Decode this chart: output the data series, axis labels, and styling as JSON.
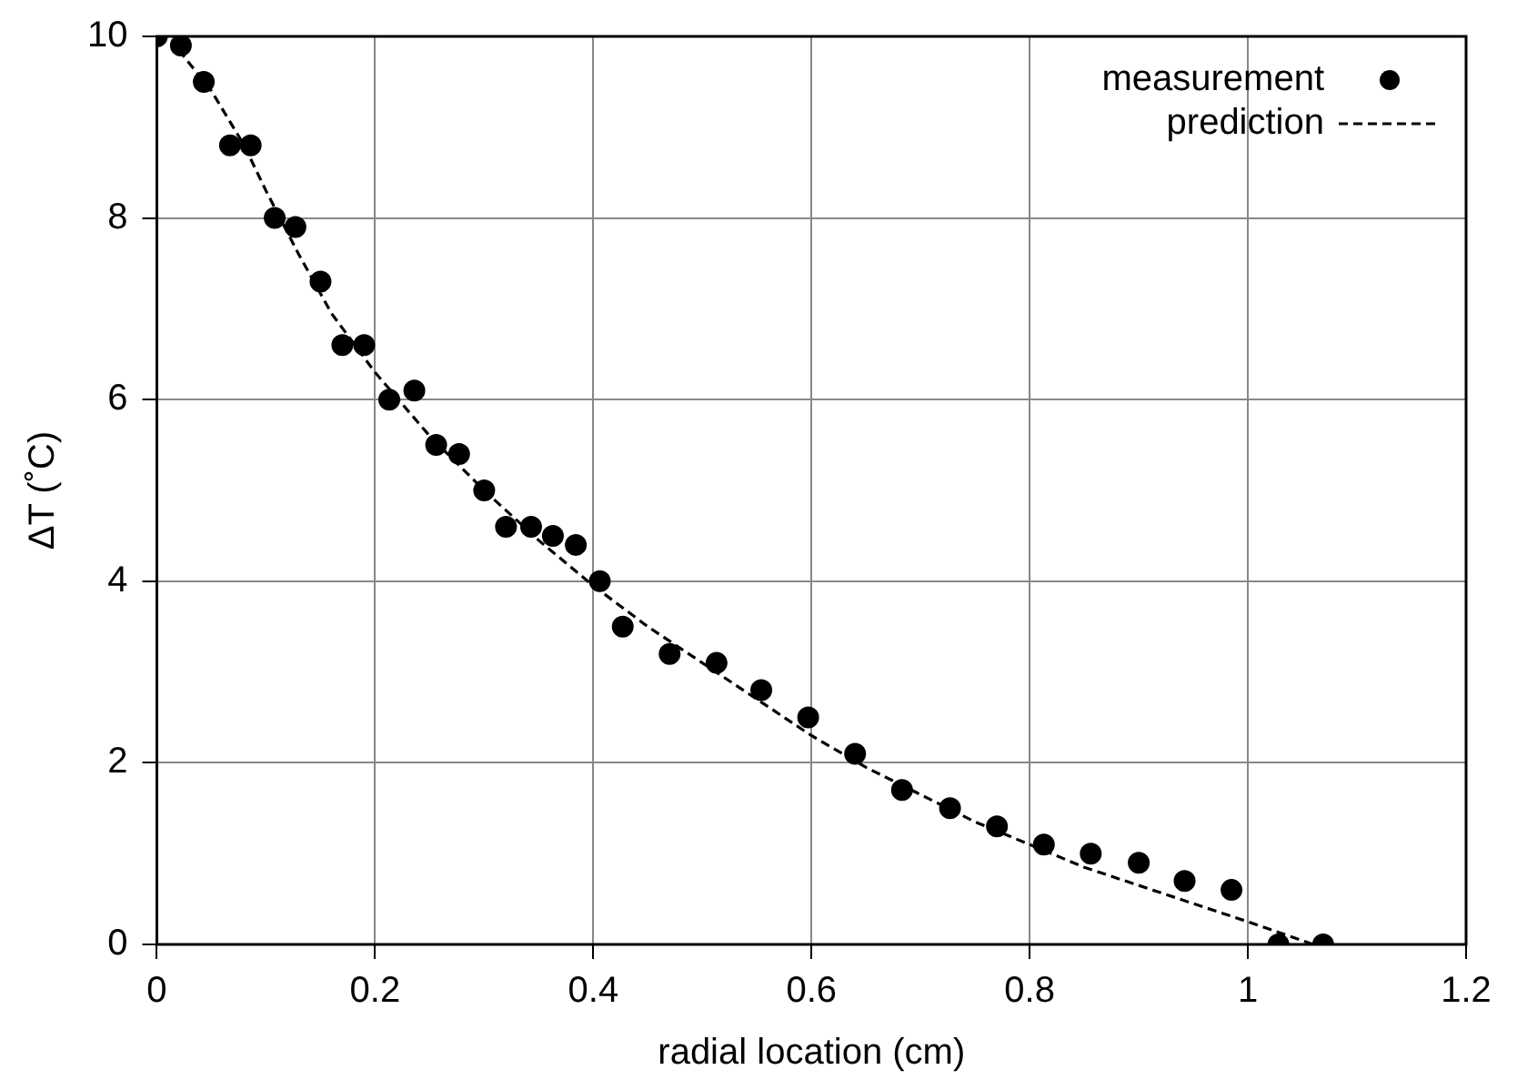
{
  "chart_data": {
    "type": "scatter",
    "xlabel": "radial location (cm)",
    "ylabel": "ΔT (˚C)",
    "xlim": [
      0,
      1.2
    ],
    "xticks": [
      0,
      0.2,
      0.4,
      0.6,
      0.8,
      1,
      1.2
    ],
    "ylim": [
      0,
      10
    ],
    "yticks": [
      0,
      2,
      4,
      6,
      8,
      10
    ],
    "grid": true,
    "legend": "top right",
    "series": [
      {
        "name": "measurement",
        "marker": "circle",
        "color": "#000000",
        "x": [
          0,
          0.022,
          0.043,
          0.067,
          0.086,
          0.108,
          0.127,
          0.15,
          0.17,
          0.19,
          0.213,
          0.236,
          0.256,
          0.277,
          0.3,
          0.32,
          0.343,
          0.363,
          0.384,
          0.406,
          0.427,
          0.47,
          0.513,
          0.554,
          0.597,
          0.64,
          0.683,
          0.727,
          0.77,
          0.813,
          0.856,
          0.9,
          0.942,
          0.985,
          1.028,
          1.069
        ],
        "values": [
          10,
          9.9,
          9.5,
          8.8,
          8.8,
          8.0,
          7.9,
          7.3,
          6.6,
          6.6,
          6.0,
          6.1,
          5.5,
          5.4,
          5.0,
          4.6,
          4.6,
          4.5,
          4.4,
          4.0,
          3.5,
          3.2,
          3.1,
          2.8,
          2.5,
          2.1,
          1.7,
          1.5,
          1.3,
          1.1,
          1.0,
          0.9,
          0.7,
          0.6,
          0,
          0
        ]
      },
      {
        "name": "prediction",
        "type": "line",
        "line_style": "dashed",
        "marker": "none",
        "color": "#000000",
        "x": [
          0.02,
          0.05,
          0.08,
          0.1,
          0.13,
          0.16,
          0.2,
          0.25,
          0.3,
          0.35,
          0.4,
          0.45,
          0.5,
          0.55,
          0.6,
          0.65,
          0.7,
          0.75,
          0.8,
          0.85,
          0.9,
          0.95,
          1.0,
          1.06
        ],
        "values": [
          9.85,
          9.4,
          8.8,
          8.3,
          7.6,
          6.95,
          6.3,
          5.6,
          5.0,
          4.45,
          3.95,
          3.5,
          3.1,
          2.7,
          2.3,
          1.95,
          1.65,
          1.35,
          1.1,
          0.85,
          0.65,
          0.45,
          0.25,
          0
        ]
      }
    ]
  }
}
